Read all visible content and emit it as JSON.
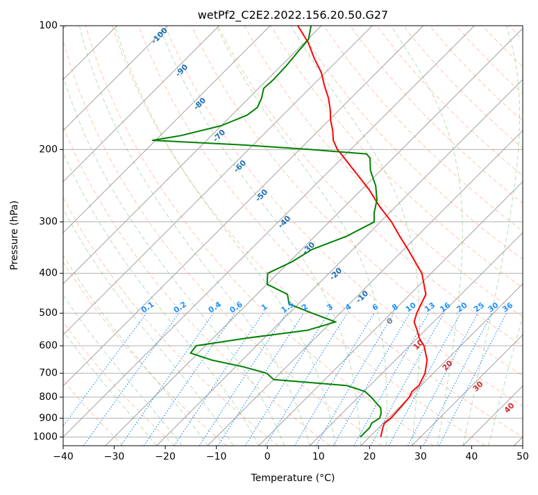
{
  "chart_data": {
    "type": "skew-t",
    "title": "wetPf2_C2E2.2022.156.20.50.G27",
    "xlabel": "Temperature (°C)",
    "ylabel": "Pressure (hPa)",
    "xlim": [
      -40,
      50
    ],
    "ylim": [
      1050,
      100
    ],
    "y_scale": "log",
    "grid": true,
    "x_ticks": [
      -40,
      -30,
      -20,
      -10,
      0,
      10,
      20,
      30,
      40,
      50
    ],
    "y_ticks": [
      100,
      200,
      300,
      400,
      500,
      600,
      700,
      800,
      900,
      1000
    ],
    "x_tick_labels": [
      "−40",
      "−30",
      "−20",
      "−10",
      "0",
      "10",
      "20",
      "30",
      "40",
      "50"
    ],
    "y_tick_labels": [
      "100",
      "200",
      "300",
      "400",
      "500",
      "600",
      "700",
      "800",
      "900",
      "1000"
    ],
    "colors": {
      "temperature": "#ff0000",
      "dewpoint": "#008000",
      "isotherms": "#a0a0a0",
      "dry_adiabats": "#ff7f50",
      "moist_adiabats": "#2ca02c",
      "mixing_ratio": "#1e90ff",
      "dry_adiabat_labels": "#1f6fb2",
      "moist_adiabat_labels": "#d62728"
    },
    "series": [
      {
        "key": "temperature",
        "points": [
          [
            1000,
            22.2
          ],
          [
            975,
            21.5
          ],
          [
            950,
            20.8
          ],
          [
            925,
            20.2
          ],
          [
            900,
            20.5
          ],
          [
            850,
            20.3
          ],
          [
            800,
            20.0
          ],
          [
            775,
            19.4
          ],
          [
            750,
            19.6
          ],
          [
            700,
            18.4
          ],
          [
            650,
            16.2
          ],
          [
            600,
            12.8
          ],
          [
            575,
            10.4
          ],
          [
            550,
            8.4
          ],
          [
            525,
            6.2
          ],
          [
            500,
            5.0
          ],
          [
            450,
            3.1
          ],
          [
            400,
            -1.8
          ],
          [
            350,
            -9.2
          ],
          [
            325,
            -13.4
          ],
          [
            300,
            -17.8
          ],
          [
            275,
            -23.2
          ],
          [
            250,
            -28.6
          ],
          [
            225,
            -35.2
          ],
          [
            205,
            -41.0
          ],
          [
            200,
            -42.6
          ],
          [
            190,
            -45.2
          ],
          [
            180,
            -47.2
          ],
          [
            170,
            -49.6
          ],
          [
            160,
            -51.8
          ],
          [
            150,
            -54.4
          ],
          [
            140,
            -57.6
          ],
          [
            130,
            -60.8
          ],
          [
            120,
            -65.0
          ],
          [
            110,
            -69.2
          ],
          [
            100,
            -74.6
          ]
        ]
      },
      {
        "key": "dewpoint",
        "points": [
          [
            1000,
            18.2
          ],
          [
            950,
            18.2
          ],
          [
            925,
            17.7
          ],
          [
            900,
            18.3
          ],
          [
            875,
            17.6
          ],
          [
            850,
            16.5
          ],
          [
            800,
            12.5
          ],
          [
            775,
            10.2
          ],
          [
            750,
            5.5
          ],
          [
            725,
            -10.0
          ],
          [
            700,
            -12.6
          ],
          [
            675,
            -18.5
          ],
          [
            650,
            -26.0
          ],
          [
            625,
            -31.5
          ],
          [
            600,
            -31.8
          ],
          [
            575,
            -23.5
          ],
          [
            550,
            -13.0
          ],
          [
            525,
            -9.2
          ],
          [
            500,
            -15.5
          ],
          [
            475,
            -21.8
          ],
          [
            450,
            -24.0
          ],
          [
            425,
            -30.0
          ],
          [
            400,
            -32.0
          ],
          [
            375,
            -29.5
          ],
          [
            350,
            -28.0
          ],
          [
            325,
            -23.8
          ],
          [
            300,
            -21.2
          ],
          [
            285,
            -23.0
          ],
          [
            265,
            -25.0
          ],
          [
            245,
            -28.0
          ],
          [
            225,
            -32.0
          ],
          [
            210,
            -34.5
          ],
          [
            205,
            -36.0
          ],
          [
            200,
            -48.0
          ],
          [
            195,
            -62.0
          ],
          [
            190,
            -80.6
          ],
          [
            185,
            -76.0
          ],
          [
            175,
            -70.0
          ],
          [
            165,
            -67.0
          ],
          [
            158,
            -66.5
          ],
          [
            150,
            -67.5
          ],
          [
            142,
            -69.0
          ],
          [
            135,
            -68.8
          ],
          [
            125,
            -69.0
          ],
          [
            115,
            -69.5
          ],
          [
            108,
            -69.8
          ],
          [
            100,
            -72.0
          ]
        ]
      }
    ],
    "dry_adiabat_labels": [
      "-100",
      "-90",
      "-80",
      "-70",
      "-60",
      "-50",
      "-40",
      "-30",
      "-20",
      "-10",
      "0",
      "10",
      "20",
      "30",
      "40"
    ],
    "moist_adiabat_labels": [
      "10",
      "20",
      "30",
      "40"
    ],
    "mixing_ratio_labels": [
      "0.1",
      "0.2",
      "0.4",
      "0.6",
      "1",
      "1.5",
      "2",
      "3",
      "4",
      "6",
      "8",
      "10",
      "13",
      "16",
      "20",
      "25",
      "30",
      "36"
    ]
  }
}
